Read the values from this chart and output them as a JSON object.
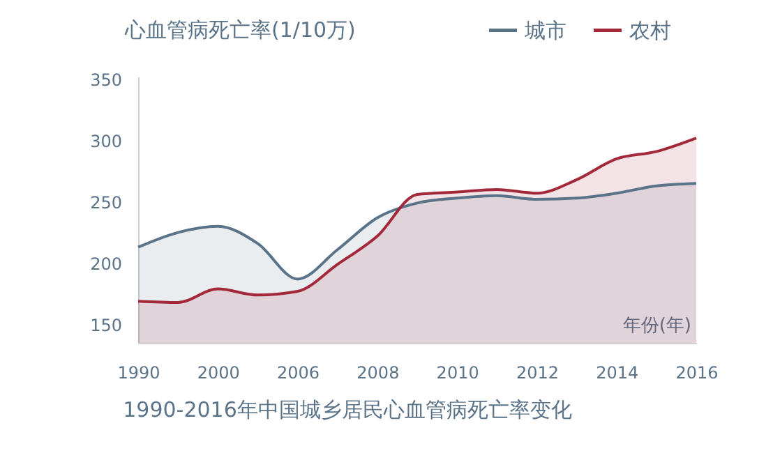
{
  "chart_data": {
    "type": "area",
    "title": "1990-2016年中国城乡居民心血管病死亡率变化",
    "ylabel": "心血管病死亡率(1/10万)",
    "xlabel": "年份(年)",
    "categories": [
      "1990",
      null,
      "2000",
      null,
      "2006",
      null,
      "2008",
      null,
      "2010",
      null,
      "2012",
      null,
      "2014",
      null,
      "2016"
    ],
    "series": [
      {
        "name": "城市",
        "color": "#5a7389",
        "values": [
          213,
          225,
          230,
          216,
          187,
          211,
          237,
          249,
          253,
          255,
          252,
          253,
          257,
          263,
          265
        ]
      },
      {
        "name": "农村",
        "color": "#a3283a",
        "values": [
          169,
          168,
          179,
          174,
          177,
          199,
          222,
          256,
          258,
          260,
          257,
          268,
          285,
          291,
          302
        ]
      }
    ],
    "ylim": [
      135,
      352
    ],
    "yticks": [
      150,
      200,
      250,
      300,
      350
    ],
    "grid": false,
    "legend": "top right"
  }
}
